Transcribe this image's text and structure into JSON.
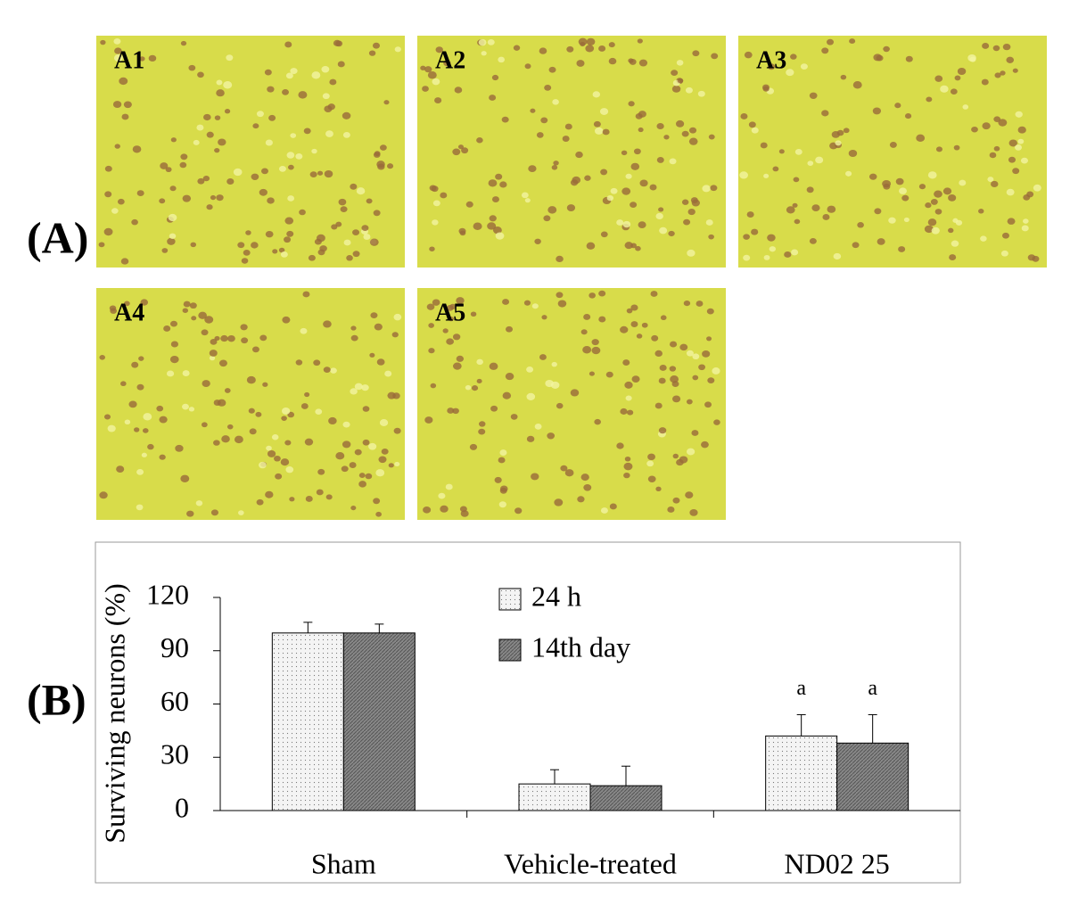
{
  "panel_label_a": "(A)",
  "panel_label_b": "(B)",
  "micrographs": [
    "A1",
    "A2",
    "A3",
    "A4",
    "A5"
  ],
  "chart_data": {
    "type": "bar",
    "y_label": "Surviving neurons (%)",
    "categories": [
      "Sham",
      "Vehicle-treated",
      "ND02 25"
    ],
    "series": [
      {
        "name": "24 h",
        "color": "#f4f4f4",
        "values": [
          100,
          15,
          42
        ],
        "errors": [
          6,
          8,
          12
        ],
        "annotations": [
          null,
          null,
          "a"
        ]
      },
      {
        "name": "14th day",
        "color": "#808080",
        "values": [
          100,
          14,
          38
        ],
        "errors": [
          5,
          11,
          16
        ],
        "annotations": [
          null,
          null,
          "a"
        ]
      }
    ],
    "ylim": [
      0,
      120
    ],
    "yticks": [
      0,
      30,
      60,
      90,
      120
    ],
    "grid": false
  }
}
